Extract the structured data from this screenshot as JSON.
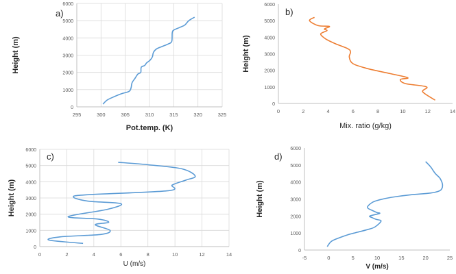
{
  "colors": {
    "blue": "#5b9bd5",
    "orange": "#ed7d31",
    "grid": "#d9d9d9",
    "axis": "#bfbfbf",
    "tick_text": "#595959",
    "label_text": "#262626"
  },
  "chart_data": [
    {
      "id": "a",
      "type": "line",
      "panel_label": "a)",
      "xlabel": "Pot.temp. (K)",
      "ylabel": "Height (m)",
      "xlim": [
        295,
        325
      ],
      "ylim": [
        0,
        6000
      ],
      "xticks": [
        "295",
        "300",
        "305",
        "310",
        "315",
        "320",
        "325"
      ],
      "yticks": [
        "0",
        "1000",
        "2000",
        "3000",
        "4000",
        "5000",
        "6000"
      ],
      "grid": true,
      "color": "orange_or_blue:blue",
      "series": [
        {
          "x": [
            300.4,
            301.3,
            302.8,
            304.2,
            305.8,
            306.2,
            306.4,
            307.0,
            307.6,
            308.2,
            308.3,
            309.0,
            309.4,
            310.1,
            310.6,
            310.8,
            311.4,
            312.6,
            313.9,
            314.6,
            314.7,
            315.0,
            316.2,
            317.3,
            318.1,
            319.3
          ],
          "y": [
            160,
            400,
            600,
            760,
            900,
            1100,
            1400,
            1650,
            1900,
            2000,
            2300,
            2400,
            2550,
            2700,
            2900,
            3150,
            3350,
            3500,
            3650,
            3800,
            4300,
            4450,
            4600,
            4750,
            5000,
            5200
          ]
        }
      ]
    },
    {
      "id": "b",
      "type": "line",
      "panel_label": "b)",
      "xlabel": "Mix. ratio (g/kg)",
      "ylabel": "Height (m)",
      "xlim": [
        0,
        14
      ],
      "ylim": [
        0,
        6000
      ],
      "xticks": [
        "0",
        "2",
        "4",
        "6",
        "8",
        "10",
        "12",
        "14"
      ],
      "yticks": [
        "0",
        "1000",
        "2000",
        "3000",
        "4000",
        "5000",
        "6000"
      ],
      "grid": false,
      "color": "orange",
      "series": [
        {
          "x": [
            12.6,
            11.6,
            11.9,
            10.2,
            9.8,
            10.4,
            9.0,
            7.2,
            6.0,
            5.7,
            5.8,
            5.6,
            4.6,
            3.8,
            3.4,
            3.9,
            3.7,
            4.1,
            3.2,
            2.5,
            2.9
          ],
          "y": [
            200,
            700,
            1000,
            1200,
            1450,
            1550,
            1800,
            2100,
            2400,
            2800,
            3100,
            3300,
            3600,
            3900,
            4200,
            4400,
            4500,
            4650,
            4700,
            5000,
            5200
          ]
        }
      ]
    },
    {
      "id": "c",
      "type": "line",
      "panel_label": "c)",
      "xlabel": "U (m/s)",
      "ylabel": "Height (m)",
      "xlim": [
        0,
        14
      ],
      "ylim": [
        0,
        6000
      ],
      "xticks": [
        "0",
        "2",
        "4",
        "6",
        "8",
        "10",
        "12",
        "14"
      ],
      "yticks": [
        "0",
        "1000",
        "2000",
        "3000",
        "4000",
        "5000",
        "6000"
      ],
      "grid": true,
      "color": "blue",
      "series": [
        {
          "x": [
            3.2,
            0.7,
            1.5,
            4.5,
            5.2,
            4.1,
            5.1,
            4.3,
            2.1,
            5.0,
            6.0,
            3.6,
            2.5,
            3.5,
            9.5,
            9.8,
            10.8,
            11.5,
            10.5,
            8.0,
            5.8
          ],
          "y": [
            200,
            400,
            600,
            750,
            1000,
            1350,
            1500,
            1700,
            1850,
            2300,
            2650,
            2800,
            3050,
            3200,
            3450,
            3800,
            4100,
            4350,
            4800,
            5050,
            5200
          ]
        }
      ]
    },
    {
      "id": "d",
      "type": "line",
      "panel_label": "d)",
      "xlabel": "V (m/s)",
      "ylabel": "Height (m)",
      "xlim": [
        -5,
        25
      ],
      "ylim": [
        0,
        6000
      ],
      "xticks": [
        "-5",
        "0",
        "5",
        "10",
        "15",
        "20",
        "25"
      ],
      "yticks": [
        "0",
        "1000",
        "2000",
        "3000",
        "4000",
        "5000",
        "6000"
      ],
      "grid": false,
      "color": "blue",
      "series": [
        {
          "x": [
            -0.3,
            0.5,
            2.0,
            4.0,
            6.0,
            8.0,
            9.5,
            10.8,
            9.8,
            9.0,
            8.5,
            10.5,
            10.0,
            9.2,
            8.0,
            9.0,
            10.5,
            13.0,
            17.0,
            21.0,
            23.0,
            23.5,
            23.0,
            22.0,
            21.0,
            20.0
          ],
          "y": [
            200,
            500,
            700,
            900,
            1050,
            1200,
            1350,
            1700,
            1800,
            1900,
            2000,
            2150,
            2200,
            2300,
            2500,
            2800,
            2950,
            3100,
            3250,
            3350,
            3500,
            3800,
            4200,
            4500,
            4900,
            5200
          ]
        }
      ]
    }
  ]
}
